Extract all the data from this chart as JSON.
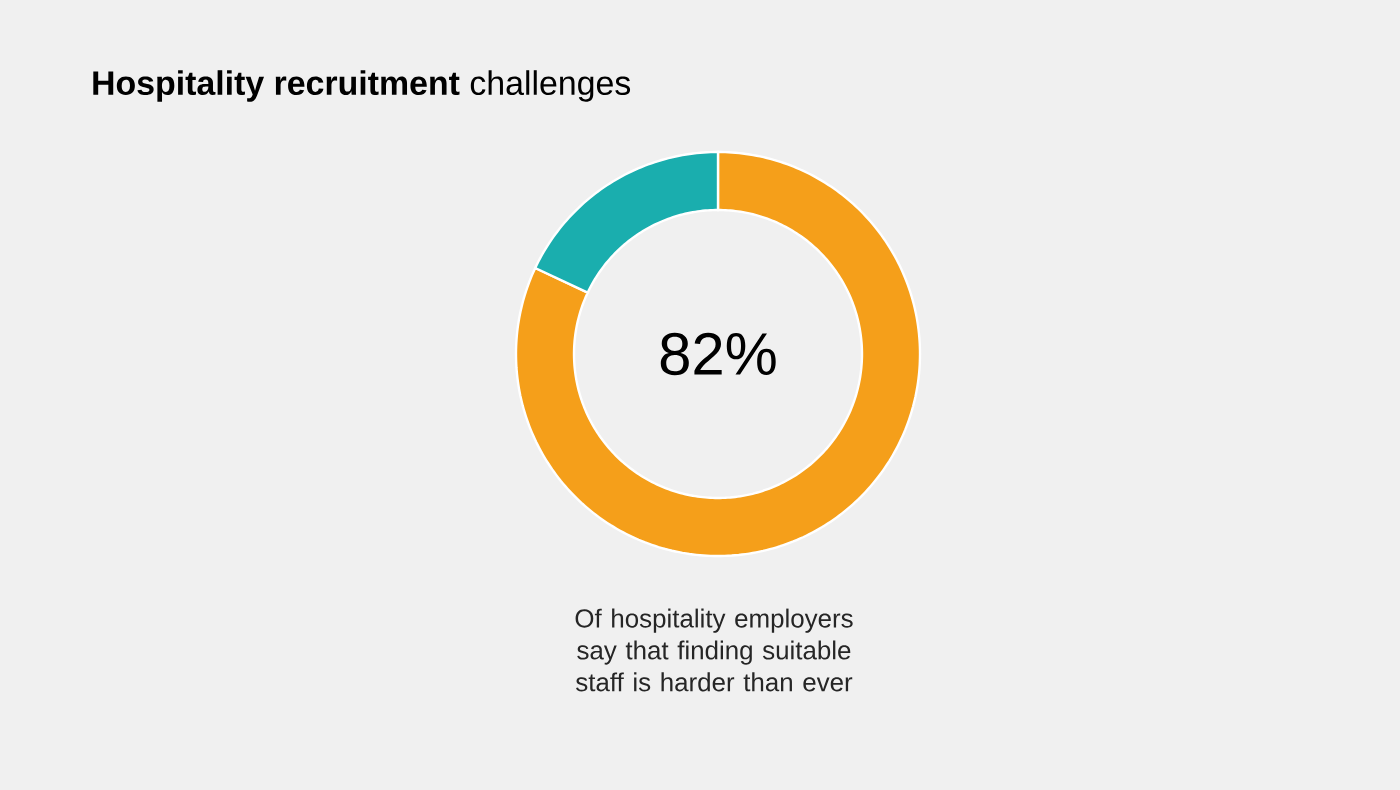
{
  "chart_data": {
    "type": "donut",
    "title": "**Hospitality recruitment** challenges",
    "categories": [
      null,
      null
    ],
    "values": [
      82,
      18
    ],
    "colors": [
      "#f59f1a",
      "#1aaeae"
    ],
    "annotations": [
      "82%",
      "Of hospitality employers say that finding suitable staff is harder than ever"
    ]
  }
}
